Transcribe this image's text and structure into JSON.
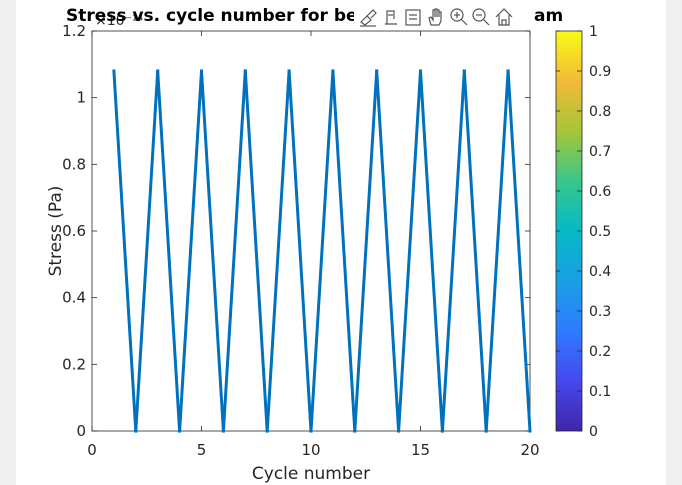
{
  "figure": {
    "title": "Stress vs. cycle number for beam",
    "exponent_label": "×10⁻¹⁴"
  },
  "toolbar": {
    "icons": [
      "brush-icon",
      "data-tip-icon",
      "legend-icon",
      "pan-hand-icon",
      "zoom-in-icon",
      "zoom-out-icon",
      "home-icon"
    ]
  },
  "colorbar": {
    "colormap": "parula",
    "ticks": [
      "0",
      "0.1",
      "0.2",
      "0.3",
      "0.4",
      "0.5",
      "0.6",
      "0.7",
      "0.8",
      "0.9",
      "1"
    ],
    "range": [
      0,
      1
    ]
  },
  "chart_data": {
    "type": "line",
    "title": "Stress vs. cycle number for beam",
    "xlabel": "Cycle number",
    "ylabel": "Stress (Pa)",
    "y_scale_exponent": -14,
    "xlim": [
      0,
      20
    ],
    "ylim": [
      0,
      1.2
    ],
    "x_ticks": [
      "0",
      "5",
      "10",
      "15",
      "20"
    ],
    "y_ticks": [
      "0",
      "0.2",
      "0.4",
      "0.6",
      "0.8",
      "1",
      "1.2"
    ],
    "series": [
      {
        "color": "#0072BD",
        "x": [
          1,
          2,
          3,
          4,
          5,
          6,
          7,
          8,
          9,
          10,
          11,
          12,
          13,
          14,
          15,
          16,
          17,
          18,
          19,
          20
        ],
        "y": [
          1.08,
          0,
          1.08,
          0,
          1.08,
          0,
          1.08,
          0,
          1.08,
          0,
          1.08,
          0,
          1.08,
          0,
          1.08,
          0,
          1.08,
          0,
          1.08,
          0
        ]
      }
    ]
  }
}
